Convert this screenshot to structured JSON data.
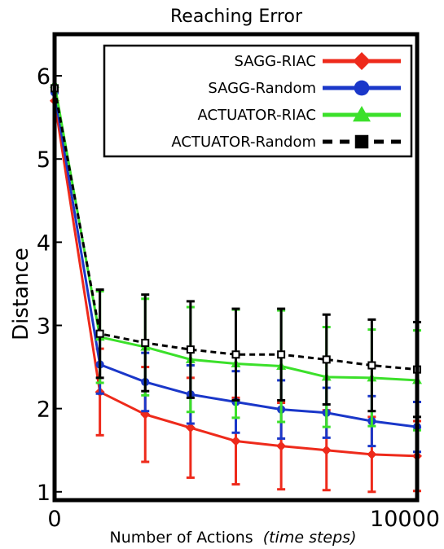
{
  "chart_data": {
    "type": "line",
    "title": "Reaching Error",
    "xlabel": "Number of Actions",
    "xlabel_italic": "(time steps)",
    "ylabel": "Distance",
    "xlim": [
      0,
      10000
    ],
    "ylim": [
      0.9,
      6.5
    ],
    "x_tick_labels": [
      "0",
      "10000"
    ],
    "y_ticks": [
      1,
      2,
      3,
      4,
      5,
      6
    ],
    "grid": false,
    "legend_position": "top-right",
    "x": [
      0,
      1250,
      2500,
      3750,
      5000,
      6250,
      7500,
      8750,
      10000
    ],
    "series": [
      {
        "name": "SAGG-RIAC",
        "color": "#ee2a1b",
        "marker": "diamond",
        "line_style": "solid",
        "values": [
          5.7,
          2.2,
          1.93,
          1.77,
          1.61,
          1.55,
          1.5,
          1.45,
          1.43
        ],
        "error": [
          0.0,
          0.52,
          0.57,
          0.6,
          0.52,
          0.52,
          0.48,
          0.45,
          0.42
        ]
      },
      {
        "name": "SAGG-Random",
        "color": "#1a37c9",
        "marker": "circle",
        "line_style": "solid",
        "values": [
          5.8,
          2.53,
          2.32,
          2.17,
          2.08,
          1.99,
          1.95,
          1.85,
          1.78
        ],
        "error": [
          0.0,
          0.35,
          0.35,
          0.35,
          0.37,
          0.35,
          0.3,
          0.3,
          0.3
        ]
      },
      {
        "name": "ACTUATOR-RIAC",
        "color": "#3be02a",
        "marker": "triangle",
        "line_style": "solid",
        "values": [
          5.9,
          2.86,
          2.74,
          2.59,
          2.54,
          2.51,
          2.38,
          2.37,
          2.34
        ],
        "error": [
          0.0,
          0.55,
          0.58,
          0.63,
          0.65,
          0.67,
          0.6,
          0.58,
          0.6
        ]
      },
      {
        "name": "ACTUATOR-Random",
        "color": "#000000",
        "marker": "square",
        "line_style": "dashed",
        "values": [
          5.85,
          2.9,
          2.79,
          2.71,
          2.65,
          2.65,
          2.59,
          2.52,
          2.47
        ],
        "error": [
          0.0,
          0.53,
          0.58,
          0.58,
          0.55,
          0.55,
          0.54,
          0.55,
          0.57
        ]
      }
    ]
  }
}
